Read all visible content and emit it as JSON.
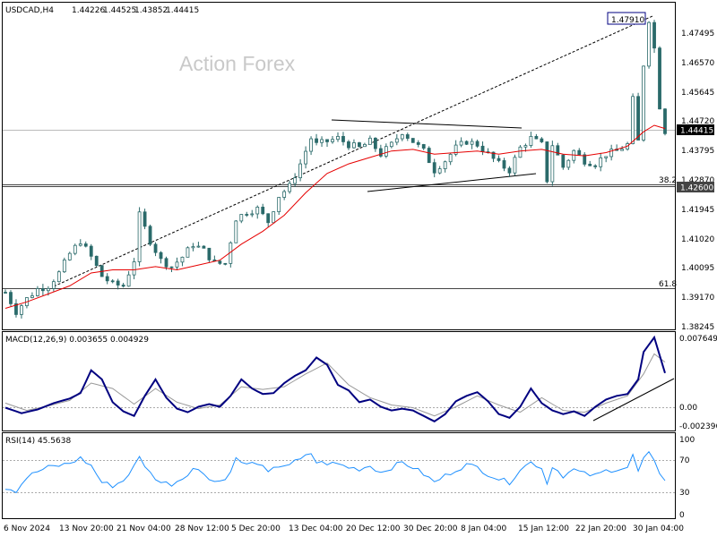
{
  "chart_data": {
    "type": "candlestick",
    "symbol_line": {
      "symbol": "USDCAD,H4",
      "open": "1.44226",
      "high": "1.44525",
      "low": "1.43852",
      "close": "1.44415"
    },
    "watermark": "Action Forex",
    "price_axis": {
      "ticks": [
        "1.47495",
        "1.46570",
        "1.45645",
        "1.44720",
        "1.43795",
        "1.42870",
        "1.41945",
        "1.41020",
        "1.40095",
        "1.39170",
        "1.38245"
      ],
      "ylim": [
        1.38245,
        1.4842
      ]
    },
    "price_markers": {
      "current": "1.44415",
      "level_382": "1.42600",
      "high": "1.47910"
    },
    "fib_levels": [
      {
        "label": "38.2",
        "price": 1.426
      },
      {
        "label": "61.8",
        "price": 1.3947
      }
    ],
    "time_axis": [
      "6 Nov 2024",
      "13 Nov 20:00",
      "21 Nov 04:00",
      "28 Nov 12:00",
      "5 Dec 20:00",
      "13 Dec 04:00",
      "20 Dec 12:00",
      "30 Dec 20:00",
      "8 Jan 04:00",
      "15 Jan 12:00",
      "22 Jan 20:00",
      "30 Jan 04:00"
    ],
    "close_path": [
      [
        0,
        1.394
      ],
      [
        2,
        1.388
      ],
      [
        4,
        1.392
      ],
      [
        6,
        1.395
      ],
      [
        8,
        1.396
      ],
      [
        10,
        1.4
      ],
      [
        12,
        1.406
      ],
      [
        14,
        1.41
      ],
      [
        16,
        1.405
      ],
      [
        18,
        1.399
      ],
      [
        20,
        1.3965
      ],
      [
        22,
        1.396
      ],
      [
        24,
        1.404
      ],
      [
        25,
        1.418
      ],
      [
        27,
        1.41
      ],
      [
        29,
        1.404
      ],
      [
        31,
        1.402
      ],
      [
        33,
        1.405
      ],
      [
        35,
        1.409
      ],
      [
        37,
        1.407
      ],
      [
        39,
        1.403
      ],
      [
        41,
        1.403
      ],
      [
        43,
        1.417
      ],
      [
        45,
        1.419
      ],
      [
        47,
        1.42
      ],
      [
        49,
        1.416
      ],
      [
        51,
        1.424
      ],
      [
        53,
        1.427
      ],
      [
        55,
        1.434
      ],
      [
        57,
        1.442
      ],
      [
        58,
        1.44
      ],
      [
        60,
        1.441
      ],
      [
        62,
        1.442
      ],
      [
        64,
        1.44
      ],
      [
        66,
        1.439
      ],
      [
        68,
        1.441
      ],
      [
        70,
        1.437
      ],
      [
        72,
        1.44
      ],
      [
        74,
        1.444
      ],
      [
        76,
        1.441
      ],
      [
        78,
        1.438
      ],
      [
        80,
        1.432
      ],
      [
        82,
        1.435
      ],
      [
        84,
        1.439
      ],
      [
        86,
        1.441
      ],
      [
        88,
        1.44
      ],
      [
        90,
        1.437
      ],
      [
        92,
        1.434
      ],
      [
        94,
        1.432
      ],
      [
        96,
        1.439
      ],
      [
        98,
        1.442
      ],
      [
        100,
        1.44
      ],
      [
        101,
        1.429
      ],
      [
        102,
        1.44
      ],
      [
        104,
        1.433
      ],
      [
        106,
        1.438
      ],
      [
        108,
        1.435
      ],
      [
        110,
        1.434
      ],
      [
        112,
        1.437
      ],
      [
        114,
        1.438
      ],
      [
        116,
        1.44
      ],
      [
        117,
        1.454
      ],
      [
        118,
        1.441
      ],
      [
        119,
        1.465
      ],
      [
        120,
        1.479
      ],
      [
        121,
        1.47
      ],
      [
        122,
        1.452
      ],
      [
        123,
        1.4442
      ]
    ],
    "ma_path": [
      [
        0,
        1.389
      ],
      [
        4,
        1.391
      ],
      [
        8,
        1.3935
      ],
      [
        12,
        1.396
      ],
      [
        16,
        1.4
      ],
      [
        20,
        1.401
      ],
      [
        24,
        1.401
      ],
      [
        28,
        1.402
      ],
      [
        32,
        1.401
      ],
      [
        36,
        1.4025
      ],
      [
        40,
        1.404
      ],
      [
        44,
        1.409
      ],
      [
        48,
        1.413
      ],
      [
        52,
        1.418
      ],
      [
        56,
        1.425
      ],
      [
        60,
        1.431
      ],
      [
        64,
        1.434
      ],
      [
        68,
        1.436
      ],
      [
        72,
        1.438
      ],
      [
        76,
        1.4385
      ],
      [
        80,
        1.437
      ],
      [
        84,
        1.4375
      ],
      [
        88,
        1.438
      ],
      [
        92,
        1.437
      ],
      [
        96,
        1.438
      ],
      [
        100,
        1.4385
      ],
      [
        104,
        1.437
      ],
      [
        108,
        1.4365
      ],
      [
        112,
        1.4375
      ],
      [
        116,
        1.4395
      ],
      [
        119,
        1.444
      ],
      [
        121,
        1.446
      ],
      [
        123,
        1.445
      ]
    ],
    "bars": 124,
    "macd": {
      "label": "MACD(12,26,9) 0.003655 0.004929",
      "ticks": [
        "0.007649",
        "0.00",
        "-0.002396"
      ],
      "ylim": [
        -0.0024,
        0.0077
      ],
      "main": [
        [
          0,
          -0.0001
        ],
        [
          3,
          -0.0007
        ],
        [
          6,
          -0.0003
        ],
        [
          9,
          0.0004
        ],
        [
          12,
          0.0009
        ],
        [
          14,
          0.0015
        ],
        [
          16,
          0.004
        ],
        [
          18,
          0.003
        ],
        [
          20,
          0.0005
        ],
        [
          22,
          -0.0005
        ],
        [
          24,
          -0.001
        ],
        [
          26,
          0.0012
        ],
        [
          28,
          0.003
        ],
        [
          30,
          0.001
        ],
        [
          32,
          -0.0002
        ],
        [
          34,
          -0.0006
        ],
        [
          36,
          0.0
        ],
        [
          38,
          0.0003
        ],
        [
          40,
          0.0
        ],
        [
          42,
          0.0012
        ],
        [
          44,
          0.003
        ],
        [
          46,
          0.002
        ],
        [
          48,
          0.0014
        ],
        [
          50,
          0.0015
        ],
        [
          52,
          0.0026
        ],
        [
          54,
          0.0034
        ],
        [
          56,
          0.004
        ],
        [
          58,
          0.0054
        ],
        [
          60,
          0.0046
        ],
        [
          62,
          0.0024
        ],
        [
          64,
          0.0018
        ],
        [
          66,
          0.0005
        ],
        [
          68,
          0.0008
        ],
        [
          70,
          0.0
        ],
        [
          72,
          -0.0004
        ],
        [
          74,
          -0.0002
        ],
        [
          76,
          -0.0004
        ],
        [
          78,
          -0.001
        ],
        [
          80,
          -0.0016
        ],
        [
          82,
          -0.0008
        ],
        [
          84,
          0.0006
        ],
        [
          86,
          0.0012
        ],
        [
          88,
          0.0016
        ],
        [
          90,
          0.0006
        ],
        [
          92,
          -0.0008
        ],
        [
          94,
          -0.0012
        ],
        [
          96,
          0.0
        ],
        [
          98,
          0.002
        ],
        [
          100,
          0.0004
        ],
        [
          102,
          -0.0004
        ],
        [
          104,
          -0.0008
        ],
        [
          106,
          -0.0005
        ],
        [
          108,
          -0.001
        ],
        [
          110,
          0.0
        ],
        [
          112,
          0.0008
        ],
        [
          114,
          0.0012
        ],
        [
          116,
          0.0014
        ],
        [
          118,
          0.003
        ],
        [
          119,
          0.006
        ],
        [
          121,
          0.0076
        ],
        [
          123,
          0.0037
        ]
      ],
      "signal": [
        [
          0,
          0.0004
        ],
        [
          4,
          -0.0004
        ],
        [
          8,
          0.0001
        ],
        [
          12,
          0.0007
        ],
        [
          16,
          0.0026
        ],
        [
          20,
          0.002
        ],
        [
          24,
          0.0003
        ],
        [
          28,
          0.002
        ],
        [
          32,
          0.0005
        ],
        [
          36,
          -0.0002
        ],
        [
          40,
          0.0002
        ],
        [
          44,
          0.0022
        ],
        [
          48,
          0.0019
        ],
        [
          52,
          0.0022
        ],
        [
          56,
          0.0036
        ],
        [
          60,
          0.0048
        ],
        [
          64,
          0.0024
        ],
        [
          68,
          0.001
        ],
        [
          72,
          0.0002
        ],
        [
          76,
          -0.0001
        ],
        [
          80,
          -0.001
        ],
        [
          84,
          0.0
        ],
        [
          88,
          0.0012
        ],
        [
          92,
          0.0002
        ],
        [
          96,
          -0.0006
        ],
        [
          100,
          0.001
        ],
        [
          104,
          -0.0004
        ],
        [
          108,
          -0.0006
        ],
        [
          112,
          0.0004
        ],
        [
          116,
          0.0012
        ],
        [
          119,
          0.0036
        ],
        [
          121,
          0.0058
        ],
        [
          123,
          0.0049
        ]
      ]
    },
    "rsi": {
      "label": "RSI(14) 45.5638",
      "ticks": [
        "100",
        "70",
        "30",
        "0"
      ],
      "ylim": [
        0,
        100
      ],
      "values": [
        [
          0,
          36
        ],
        [
          2,
          32
        ],
        [
          4,
          48
        ],
        [
          6,
          55
        ],
        [
          8,
          60
        ],
        [
          10,
          62
        ],
        [
          12,
          65
        ],
        [
          14,
          71
        ],
        [
          16,
          62
        ],
        [
          18,
          42
        ],
        [
          20,
          38
        ],
        [
          22,
          44
        ],
        [
          24,
          61
        ],
        [
          25,
          72
        ],
        [
          27,
          53
        ],
        [
          29,
          42
        ],
        [
          31,
          40
        ],
        [
          33,
          47
        ],
        [
          35,
          59
        ],
        [
          37,
          53
        ],
        [
          39,
          43
        ],
        [
          41,
          45
        ],
        [
          43,
          70
        ],
        [
          45,
          63
        ],
        [
          47,
          66
        ],
        [
          49,
          53
        ],
        [
          51,
          62
        ],
        [
          53,
          64
        ],
        [
          55,
          69
        ],
        [
          57,
          77
        ],
        [
          58,
          66
        ],
        [
          60,
          65
        ],
        [
          62,
          64
        ],
        [
          64,
          60
        ],
        [
          66,
          58
        ],
        [
          68,
          62
        ],
        [
          70,
          54
        ],
        [
          72,
          60
        ],
        [
          74,
          66
        ],
        [
          76,
          60
        ],
        [
          78,
          52
        ],
        [
          80,
          42
        ],
        [
          82,
          50
        ],
        [
          84,
          57
        ],
        [
          86,
          63
        ],
        [
          88,
          60
        ],
        [
          90,
          52
        ],
        [
          92,
          46
        ],
        [
          94,
          42
        ],
        [
          96,
          58
        ],
        [
          98,
          66
        ],
        [
          100,
          60
        ],
        [
          101,
          40
        ],
        [
          102,
          62
        ],
        [
          104,
          50
        ],
        [
          106,
          57
        ],
        [
          108,
          52
        ],
        [
          110,
          50
        ],
        [
          112,
          56
        ],
        [
          114,
          58
        ],
        [
          116,
          60
        ],
        [
          117,
          74
        ],
        [
          118,
          55
        ],
        [
          119,
          70
        ],
        [
          120,
          76
        ],
        [
          121,
          66
        ],
        [
          122,
          54
        ],
        [
          123,
          46
        ]
      ]
    }
  },
  "colors": {
    "candle": "#2a6a6a",
    "ma": "#e60000",
    "macd_main": "#000080",
    "macd_signal": "#999999",
    "rsi": "#1e90ff",
    "trend": "#000000",
    "fib": "#444444"
  }
}
